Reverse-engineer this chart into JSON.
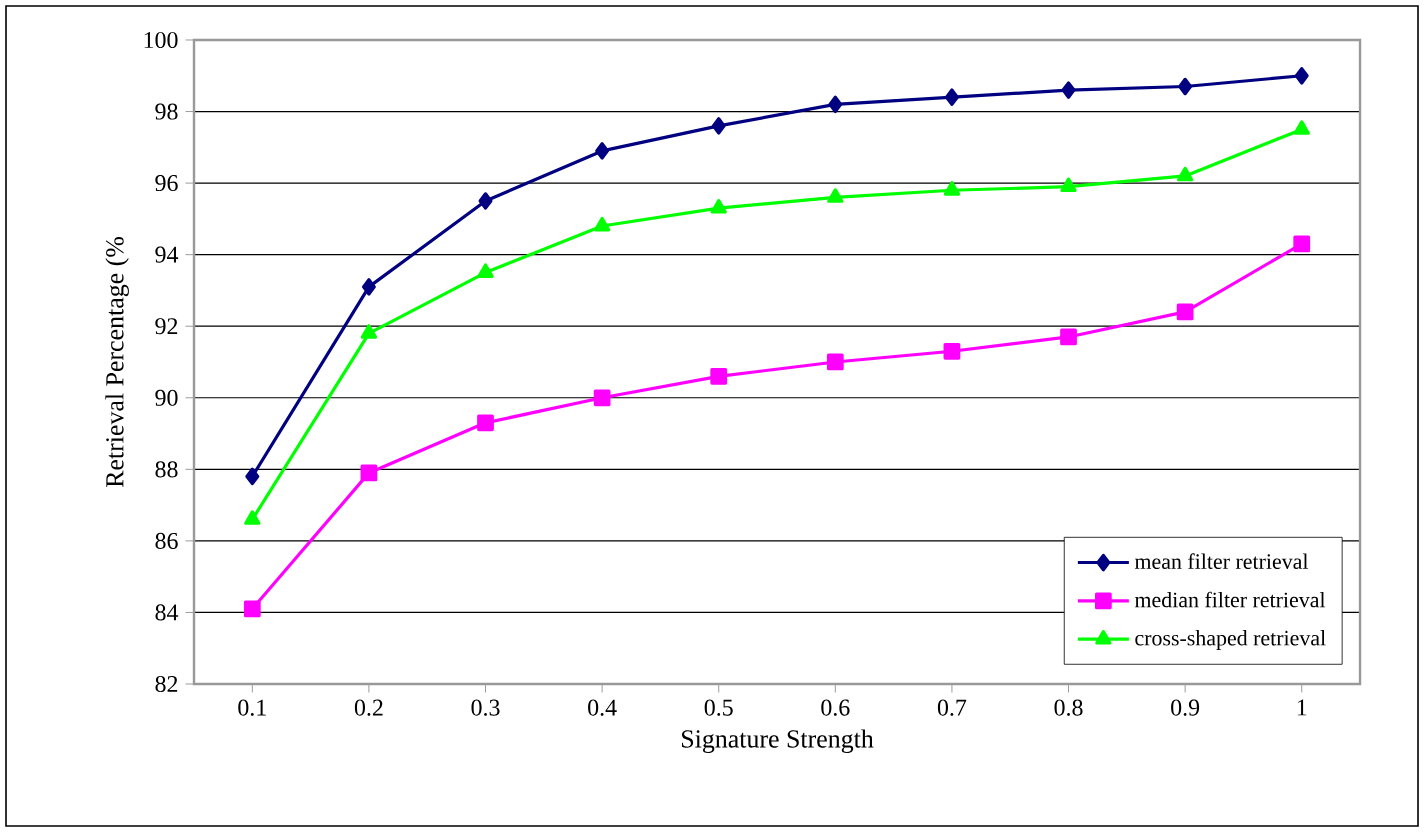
{
  "chart_data": {
    "type": "line",
    "xlabel": "Signature Strength",
    "ylabel": "Retrieval Percentage (%",
    "categories": [
      "0.1",
      "0.2",
      "0.3",
      "0.4",
      "0.5",
      "0.6",
      "0.7",
      "0.8",
      "0.9",
      "1"
    ],
    "series": [
      {
        "name": "mean filter retrieval",
        "color": "#000080",
        "marker": "diamond",
        "values": [
          87.8,
          93.1,
          95.5,
          96.9,
          97.6,
          98.2,
          98.4,
          98.6,
          98.7,
          99.0
        ]
      },
      {
        "name": "median filter retrieval",
        "color": "#ff00ff",
        "marker": "square",
        "values": [
          84.1,
          87.9,
          89.3,
          90.0,
          90.6,
          91.0,
          91.3,
          91.7,
          92.4,
          94.3
        ]
      },
      {
        "name": "cross-shaped retrieval",
        "color": "#00ff00",
        "marker": "triangle",
        "values": [
          86.6,
          91.8,
          93.5,
          94.8,
          95.3,
          95.6,
          95.8,
          95.9,
          96.2,
          97.5
        ]
      }
    ],
    "ylim": [
      82,
      100
    ],
    "yticks": [
      82,
      84,
      86,
      88,
      90,
      92,
      94,
      96,
      98,
      100
    ],
    "grid": "y",
    "legend": "bottom right",
    "line_style": "solid"
  }
}
